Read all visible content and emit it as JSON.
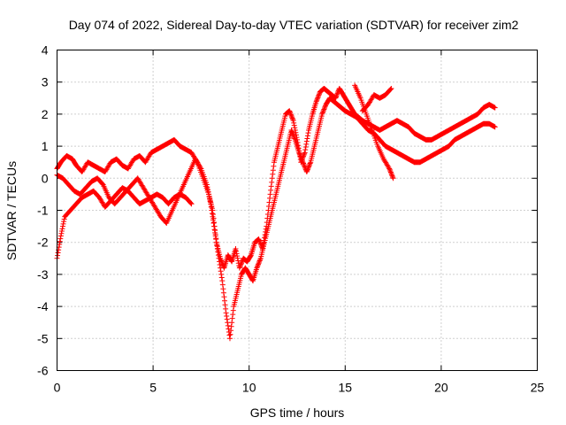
{
  "chart_data": {
    "type": "scatter",
    "title": "Day 074 of 2022, Sidereal Day-to-day VTEC variation (SDTVAR) for receiver zim2",
    "xlabel": "GPS time / hours",
    "ylabel": "SDTVAR / TECUs",
    "xlim": [
      0,
      25
    ],
    "ylim": [
      -6,
      4
    ],
    "xticks": [
      "0",
      "5",
      "10",
      "15",
      "20",
      "25"
    ],
    "yticks": [
      "4",
      "3",
      "2",
      "1",
      "0",
      "-1",
      "-2",
      "-3",
      "-4",
      "-5",
      "-6"
    ],
    "grid": true,
    "marker_color": "#ff0000",
    "marker": "plus",
    "series": [
      {
        "x": [
          0.0,
          0.2,
          0.5,
          0.8,
          1.0,
          1.3,
          1.6,
          1.9,
          2.2,
          2.5,
          2.8,
          3.1,
          3.4,
          3.7,
          4.0,
          4.3,
          4.6,
          4.9,
          5.2,
          5.5,
          5.8,
          6.1,
          6.4,
          6.7,
          7.0,
          7.3,
          7.6,
          7.9,
          8.1,
          8.3,
          8.5,
          8.7,
          8.9,
          9.1,
          9.3,
          9.5,
          9.7,
          9.9,
          10.1,
          10.3,
          10.5,
          10.7,
          10.9,
          11.1,
          11.3,
          11.5,
          11.7,
          11.9,
          12.1,
          12.3,
          12.5,
          12.7,
          12.9,
          13.1,
          13.3,
          13.5,
          13.7,
          13.9,
          14.1,
          14.3,
          14.5,
          14.7,
          14.9,
          15.1,
          15.3,
          15.5,
          15.7,
          15.9,
          16.2,
          16.5,
          16.8,
          17.1,
          17.4,
          17.7,
          18.0,
          18.3,
          18.6,
          18.9,
          19.2,
          19.5,
          19.8,
          20.1,
          20.4,
          20.7,
          21.0,
          21.3,
          21.6,
          21.9,
          22.2,
          22.5,
          22.8
        ],
        "y": [
          0.3,
          0.5,
          0.7,
          0.6,
          0.4,
          0.2,
          0.5,
          0.4,
          0.3,
          0.2,
          0.5,
          0.6,
          0.4,
          0.3,
          0.6,
          0.7,
          0.5,
          0.8,
          0.9,
          1.0,
          1.1,
          1.2,
          1.0,
          0.9,
          0.8,
          0.5,
          0.0,
          -0.5,
          -1.0,
          -2.0,
          -2.5,
          -2.8,
          -2.4,
          -2.6,
          -2.2,
          -2.8,
          -2.5,
          -2.6,
          -2.4,
          -2.0,
          -1.9,
          -2.2,
          -1.5,
          -0.5,
          0.5,
          1.0,
          1.5,
          2.0,
          2.1,
          1.8,
          1.2,
          0.5,
          0.8,
          1.5,
          2.0,
          2.4,
          2.7,
          2.8,
          2.7,
          2.6,
          2.5,
          2.8,
          2.6,
          2.4,
          2.2,
          2.0,
          1.9,
          1.8,
          1.7,
          1.6,
          1.5,
          1.6,
          1.7,
          1.8,
          1.7,
          1.6,
          1.4,
          1.3,
          1.2,
          1.2,
          1.3,
          1.4,
          1.5,
          1.6,
          1.7,
          1.8,
          1.9,
          2.0,
          2.2,
          2.3,
          2.2
        ]
      },
      {
        "x": [
          0.0,
          0.3,
          0.6,
          0.9,
          1.2,
          1.5,
          1.8,
          2.1,
          2.4,
          2.7,
          3.0,
          3.3,
          3.6,
          3.9,
          4.2,
          4.5,
          4.8,
          5.1,
          5.4,
          5.7,
          6.0,
          6.3,
          6.6,
          6.9,
          7.2,
          7.5,
          7.8,
          8.0,
          8.2,
          8.4,
          8.6,
          8.8,
          9.0,
          9.2,
          9.4,
          9.6,
          9.8,
          10.0,
          10.2,
          10.4,
          10.6,
          10.8,
          11.0,
          11.2,
          11.4,
          11.6,
          11.8,
          12.0,
          12.2,
          12.4,
          12.6,
          12.8,
          13.0,
          13.2,
          13.4,
          13.6,
          13.8,
          14.0,
          14.2,
          14.4,
          14.6,
          14.8,
          15.0,
          15.3,
          15.6,
          15.9,
          16.2,
          16.5,
          16.8,
          17.1,
          17.4,
          17.7,
          18.0,
          18.3,
          18.6,
          18.9,
          19.2,
          19.5,
          19.8,
          20.1,
          20.4,
          20.7,
          21.0,
          21.3,
          21.6,
          21.9,
          22.2,
          22.5,
          22.8
        ],
        "y": [
          0.1,
          0.0,
          -0.2,
          -0.4,
          -0.5,
          -0.3,
          -0.1,
          0.0,
          -0.2,
          -0.6,
          -0.8,
          -0.6,
          -0.4,
          -0.2,
          0.0,
          -0.3,
          -0.6,
          -0.9,
          -1.2,
          -1.4,
          -1.0,
          -0.6,
          -0.2,
          0.2,
          0.6,
          0.3,
          -0.2,
          -0.8,
          -1.6,
          -2.4,
          -3.2,
          -4.2,
          -5.0,
          -4.0,
          -3.5,
          -3.0,
          -2.8,
          -3.0,
          -3.2,
          -2.8,
          -2.5,
          -2.0,
          -1.5,
          -1.0,
          -0.5,
          0.0,
          0.5,
          1.0,
          1.5,
          1.2,
          0.8,
          0.5,
          0.2,
          0.5,
          1.0,
          1.5,
          2.0,
          2.3,
          2.5,
          2.4,
          2.3,
          2.2,
          2.1,
          2.0,
          1.9,
          1.7,
          1.5,
          1.4,
          1.2,
          1.0,
          0.9,
          0.8,
          0.7,
          0.6,
          0.5,
          0.5,
          0.6,
          0.7,
          0.8,
          0.9,
          1.0,
          1.2,
          1.3,
          1.4,
          1.5,
          1.6,
          1.7,
          1.7,
          1.6
        ]
      },
      {
        "x": [
          0.0,
          0.2,
          0.4,
          0.7,
          1.0,
          1.3,
          1.6,
          1.9,
          2.2,
          2.5,
          2.8,
          3.1,
          3.4,
          3.7,
          4.0,
          4.3,
          4.6,
          4.9,
          5.2,
          5.5,
          5.8,
          6.1,
          6.4,
          6.7,
          7.0
        ],
        "y": [
          -2.5,
          -1.8,
          -1.2,
          -1.0,
          -0.8,
          -0.6,
          -0.5,
          -0.4,
          -0.6,
          -0.9,
          -0.7,
          -0.5,
          -0.3,
          -0.4,
          -0.6,
          -0.8,
          -0.7,
          -0.6,
          -0.5,
          -0.6,
          -0.8,
          -0.6,
          -0.5,
          -0.6,
          -0.8
        ]
      },
      {
        "x": [
          15.5,
          15.8,
          16.1,
          16.4,
          16.7,
          17.0,
          17.3,
          17.5
        ],
        "y": [
          2.9,
          2.5,
          2.0,
          1.5,
          1.0,
          0.6,
          0.3,
          0.0
        ]
      },
      {
        "x": [
          15.9,
          16.2,
          16.5,
          16.8,
          17.1,
          17.4
        ],
        "y": [
          2.1,
          2.3,
          2.6,
          2.5,
          2.6,
          2.8
        ]
      }
    ]
  }
}
